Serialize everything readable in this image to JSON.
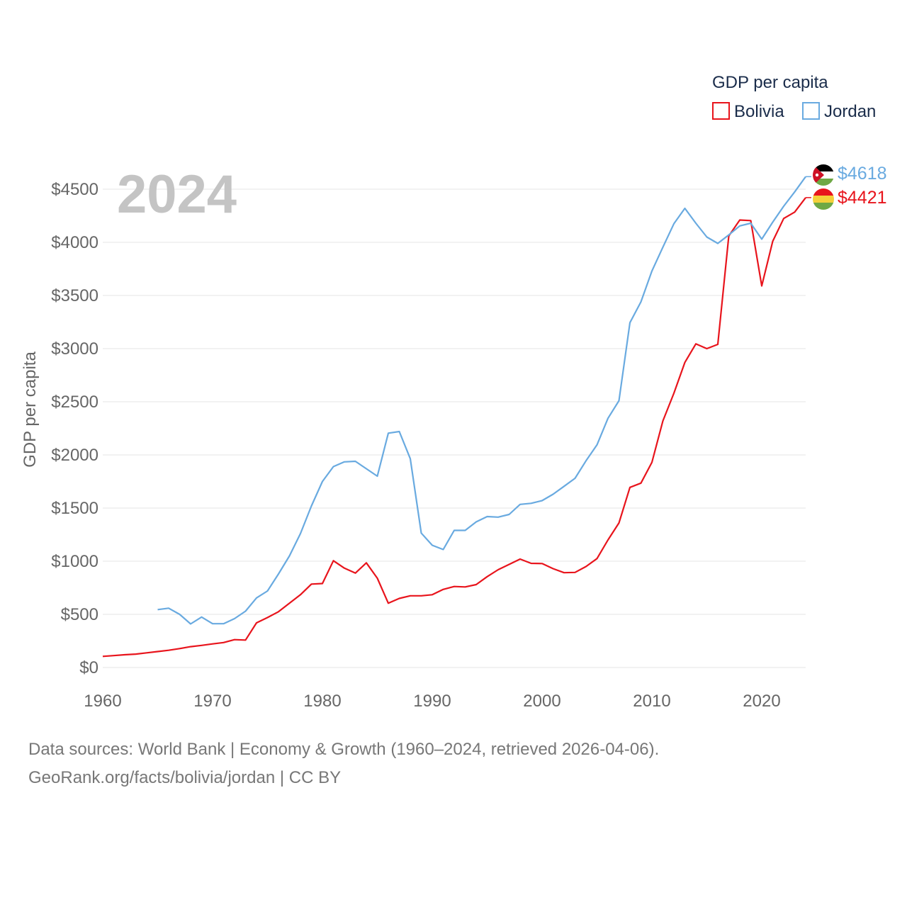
{
  "chart_data": {
    "type": "line",
    "legend_title": "GDP per capita",
    "ylabel": "GDP per capita",
    "year_label": "2024",
    "ylim": [
      0,
      4800
    ],
    "xlim": [
      1960,
      2024
    ],
    "y_ticks": [
      0,
      500,
      1000,
      1500,
      2000,
      2500,
      3000,
      3500,
      4000,
      4500
    ],
    "y_tick_labels": [
      "$0",
      "$500",
      "$1000",
      "$1500",
      "$2000",
      "$2500",
      "$3000",
      "$3500",
      "$4000",
      "$4500"
    ],
    "x_ticks": [
      1960,
      1970,
      1980,
      1990,
      2000,
      2010,
      2020
    ],
    "x_tick_labels": [
      "1960",
      "1970",
      "1980",
      "1990",
      "2000",
      "2010",
      "2020"
    ],
    "series": [
      {
        "name": "Bolivia",
        "color": "#e8141c",
        "end_label": "$4421",
        "flag": "bolivia-flag-icon",
        "x": [
          1960,
          1961,
          1962,
          1963,
          1964,
          1965,
          1966,
          1967,
          1968,
          1969,
          1970,
          1971,
          1972,
          1973,
          1974,
          1975,
          1976,
          1977,
          1978,
          1979,
          1980,
          1981,
          1982,
          1983,
          1984,
          1985,
          1986,
          1987,
          1988,
          1989,
          1990,
          1991,
          1992,
          1993,
          1994,
          1995,
          1996,
          1997,
          1998,
          1999,
          2000,
          2001,
          2002,
          2003,
          2004,
          2005,
          2006,
          2007,
          2008,
          2009,
          2010,
          2011,
          2012,
          2013,
          2014,
          2015,
          2016,
          2017,
          2018,
          2019,
          2020,
          2021,
          2022,
          2023,
          2024
        ],
        "values": [
          105,
          112,
          120,
          126,
          138,
          150,
          162,
          178,
          196,
          208,
          222,
          235,
          262,
          258,
          420,
          470,
          525,
          605,
          685,
          785,
          790,
          1005,
          935,
          888,
          985,
          840,
          605,
          650,
          675,
          675,
          685,
          735,
          762,
          758,
          780,
          855,
          920,
          970,
          1020,
          980,
          978,
          930,
          892,
          895,
          950,
          1025,
          1200,
          1360,
          1695,
          1735,
          1930,
          2320,
          2580,
          2870,
          3045,
          3000,
          3040,
          4060,
          4210,
          4205,
          3590,
          4010,
          4225,
          4285,
          4421
        ]
      },
      {
        "name": "Jordan",
        "color": "#69aae0",
        "end_label": "$4618",
        "flag": "jordan-flag-icon",
        "x": [
          1965,
          1966,
          1967,
          1968,
          1969,
          1970,
          1971,
          1972,
          1973,
          1974,
          1975,
          1976,
          1977,
          1978,
          1979,
          1980,
          1981,
          1982,
          1983,
          1984,
          1985,
          1986,
          1987,
          1988,
          1989,
          1990,
          1991,
          1992,
          1993,
          1994,
          1995,
          1996,
          1997,
          1998,
          1999,
          2000,
          2001,
          2002,
          2003,
          2004,
          2005,
          2006,
          2007,
          2008,
          2009,
          2010,
          2011,
          2012,
          2013,
          2014,
          2015,
          2016,
          2017,
          2018,
          2019,
          2020,
          2021,
          2022,
          2023,
          2024
        ],
        "values": [
          545,
          558,
          500,
          410,
          475,
          412,
          412,
          460,
          530,
          655,
          720,
          880,
          1050,
          1260,
          1520,
          1750,
          1890,
          1935,
          1940,
          1870,
          1800,
          2205,
          2220,
          1965,
          1265,
          1150,
          1110,
          1290,
          1290,
          1370,
          1420,
          1415,
          1440,
          1535,
          1545,
          1570,
          1630,
          1705,
          1780,
          1945,
          2095,
          2345,
          2510,
          3245,
          3440,
          3730,
          3955,
          4175,
          4320,
          4180,
          4050,
          3990,
          4070,
          4155,
          4180,
          4030,
          4190,
          4340,
          4475,
          4618
        ]
      }
    ],
    "source_line1": "Data sources: World Bank | Economy & Growth (1960–2024, retrieved 2026-04-06).",
    "source_line2": "GeoRank.org/facts/bolivia/jordan | CC BY"
  }
}
